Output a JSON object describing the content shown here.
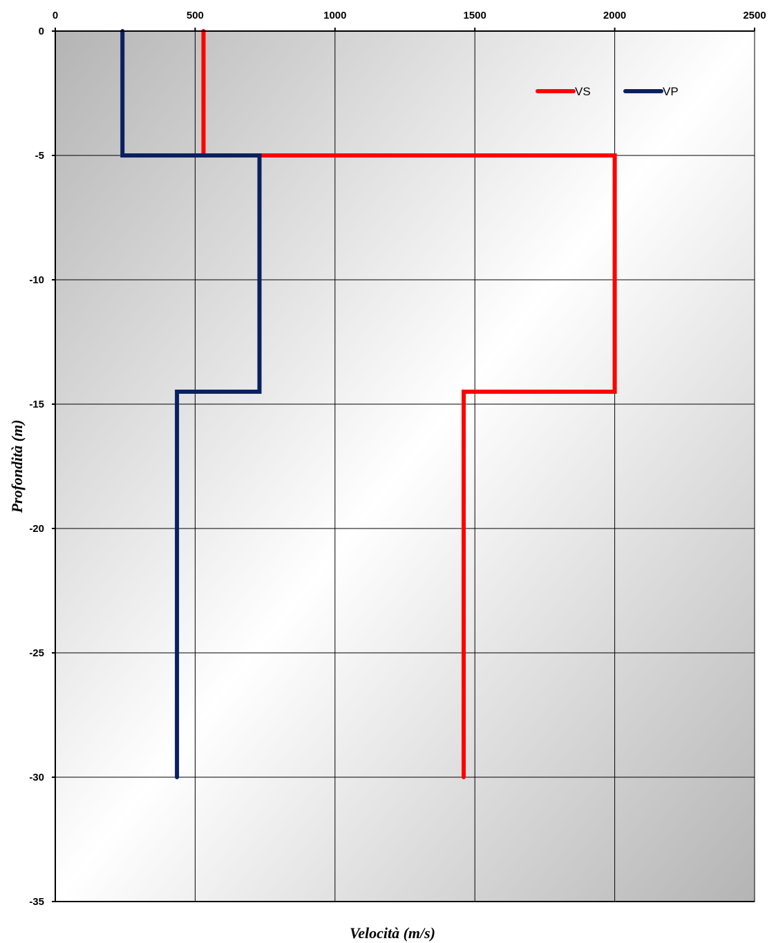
{
  "chart_data": {
    "type": "line",
    "title": "",
    "xlabel": "Velocità (m/s)",
    "ylabel": "Profondità (m)",
    "xlim": [
      0,
      2500
    ],
    "ylim": [
      -35,
      0
    ],
    "x_ticks": [
      0,
      500,
      1000,
      1500,
      2000,
      2500
    ],
    "y_ticks": [
      0,
      -5,
      -10,
      -15,
      -20,
      -25,
      -30,
      -35
    ],
    "x_axis_position": "top",
    "grid": true,
    "legend_position": "top-right",
    "series": [
      {
        "name": "VS",
        "color": "#ff0000",
        "points": [
          [
            530,
            0
          ],
          [
            530,
            -5
          ],
          [
            2000,
            -5
          ],
          [
            2000,
            -14.5
          ],
          [
            1460,
            -14.5
          ],
          [
            1460,
            -30
          ]
        ]
      },
      {
        "name": "VP",
        "color": "#0a2060",
        "points": [
          [
            240,
            0
          ],
          [
            240,
            -5
          ],
          [
            730,
            -5
          ],
          [
            730,
            -14.5
          ],
          [
            435,
            -14.5
          ],
          [
            435,
            -30
          ]
        ]
      }
    ]
  }
}
